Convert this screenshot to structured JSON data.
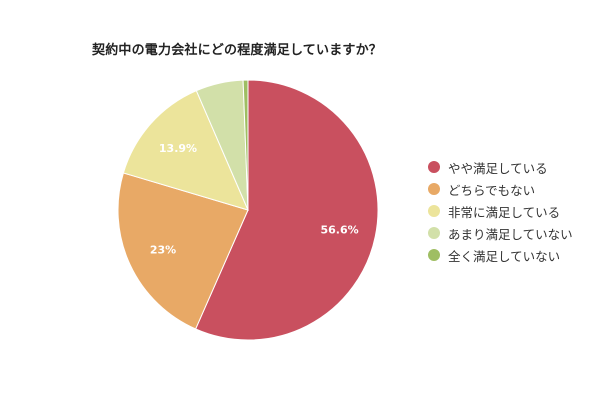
{
  "chart_data": {
    "type": "pie",
    "title": "契約中の電力会社にどの程度満足していますか？",
    "categories": [
      "やや満足している",
      "どちらでもない",
      "非常に満足している",
      "あまり満足していない",
      "全く満足していない"
    ],
    "values": [
      56.6,
      23,
      13.9,
      5.9,
      0.6
    ],
    "data_labels": [
      "56.6%",
      "23%",
      "13.9%",
      "",
      ""
    ],
    "colors": [
      "#c9505f",
      "#e8a966",
      "#ece49b",
      "#d2e0a9",
      "#9fbe63"
    ],
    "start_angle_deg": 0,
    "direction": "clockwise",
    "legend_position": "right"
  },
  "title": "契約中の電力会社にどの程度満足していますか？",
  "legend": [
    {
      "label": "やや満足している",
      "color": "#c9505f"
    },
    {
      "label": "どちらでもない",
      "color": "#e8a966"
    },
    {
      "label": "非常に満足している",
      "color": "#ece49b"
    },
    {
      "label": "あまり満足していない",
      "color": "#d2e0a9"
    },
    {
      "label": "全く満足していない",
      "color": "#9fbe63"
    }
  ]
}
